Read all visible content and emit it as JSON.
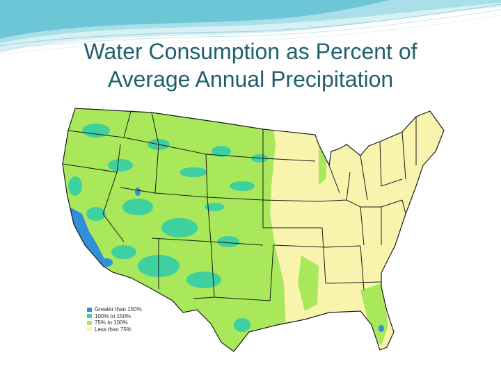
{
  "slide": {
    "title_line1": "Water Consumption as Percent of",
    "title_line2": "Average Annual Precipitation"
  },
  "map": {
    "region": "Contiguous United States",
    "colors": {
      "gt150": "#2f8fd8",
      "r100_150": "#3fd0a0",
      "r75_100": "#a8e85a",
      "lt75": "#f8f4ae",
      "border": "#1a1a1a"
    }
  },
  "legend": {
    "items": [
      {
        "label": "Greater than 150%",
        "color": "#2f8fd8"
      },
      {
        "label": "100% to 150%",
        "color": "#3fd0a0"
      },
      {
        "label": "75% to 100%",
        "color": "#a8e85a"
      },
      {
        "label": "Less than 75%",
        "color": "#f8f4ae"
      }
    ]
  }
}
